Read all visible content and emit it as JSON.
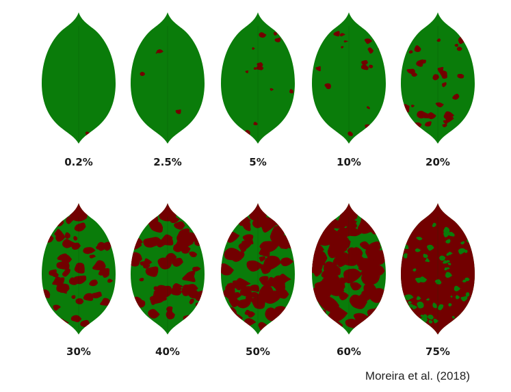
{
  "diagram": {
    "colors": {
      "healthy": "#0a7c0a",
      "lesion": "#720000"
    },
    "leaves": [
      {
        "label": "0.2%",
        "severity": 0.002
      },
      {
        "label": "2.5%",
        "severity": 0.025
      },
      {
        "label": "5%",
        "severity": 0.05
      },
      {
        "label": "10%",
        "severity": 0.1
      },
      {
        "label": "20%",
        "severity": 0.2
      },
      {
        "label": "30%",
        "severity": 0.3
      },
      {
        "label": "40%",
        "severity": 0.4
      },
      {
        "label": "50%",
        "severity": 0.5
      },
      {
        "label": "60%",
        "severity": 0.6
      },
      {
        "label": "75%",
        "severity": 0.75
      }
    ],
    "citation": "Moreira et al. (2018)"
  }
}
